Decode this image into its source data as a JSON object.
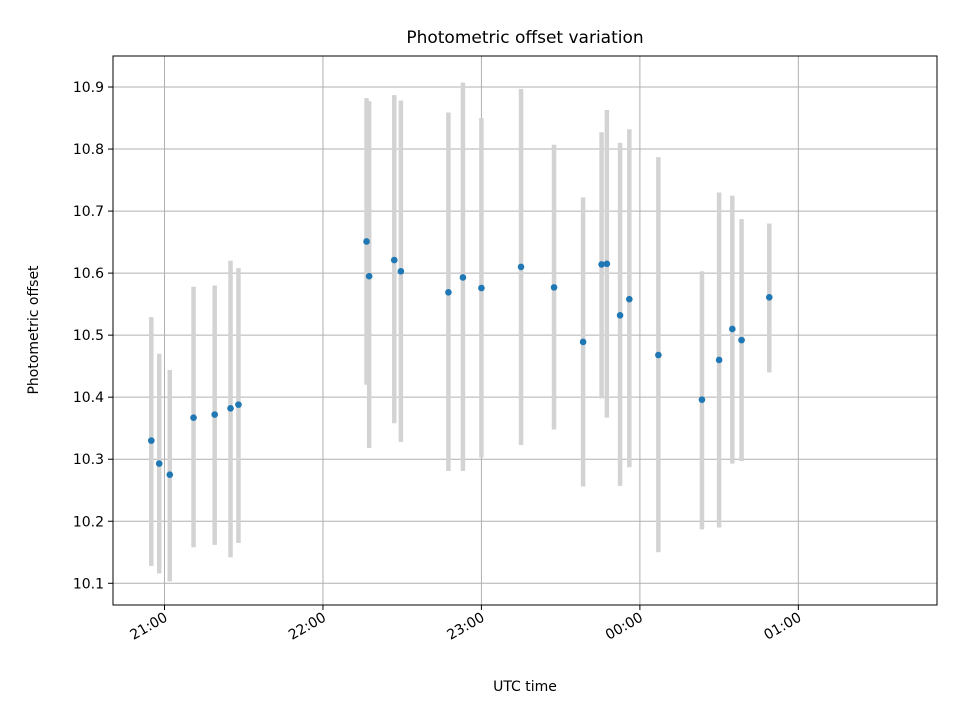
{
  "chart_data": {
    "type": "scatter",
    "title": "Photometric offset variation",
    "xlabel": "UTC time",
    "ylabel": "Photometric offset",
    "x_ticks": [
      "21:00",
      "22:00",
      "23:00",
      "00:00",
      "01:00"
    ],
    "y_ticks": [
      10.1,
      10.2,
      10.3,
      10.4,
      10.5,
      10.6,
      10.7,
      10.8,
      10.9
    ],
    "x_unit": "minutes after 20:00 UTC",
    "xlim": [
      40.5,
      352.5
    ],
    "ylim": [
      10.065,
      10.95
    ],
    "grid": true,
    "legend": "none",
    "colors": {
      "points": "#1f77b4",
      "errorbars": "#d3d3d3"
    },
    "series": [
      {
        "x": [
          55,
          58,
          62,
          71,
          79,
          85,
          88,
          136.5,
          137.5,
          147,
          149.5,
          167.5,
          173,
          180,
          195,
          207.5,
          218.5,
          225.5,
          227.5,
          232.5,
          236,
          247,
          263.5,
          270,
          275,
          278.5,
          289
        ],
        "y": [
          10.33,
          10.293,
          10.275,
          10.367,
          10.372,
          10.382,
          10.388,
          10.651,
          10.595,
          10.621,
          10.603,
          10.569,
          10.593,
          10.576,
          10.61,
          10.577,
          10.489,
          10.614,
          10.615,
          10.532,
          10.558,
          10.468,
          10.396,
          10.46,
          10.51,
          10.492,
          10.561
        ],
        "yerr_low": [
          10.128,
          10.116,
          10.103,
          10.158,
          10.162,
          10.142,
          10.165,
          10.42,
          10.318,
          10.358,
          10.328,
          10.281,
          10.281,
          10.303,
          10.323,
          10.348,
          10.256,
          10.398,
          10.367,
          10.257,
          10.287,
          10.15,
          10.187,
          10.19,
          10.293,
          10.297,
          10.44
        ],
        "yerr_high": [
          10.529,
          10.47,
          10.444,
          10.578,
          10.58,
          10.62,
          10.608,
          10.882,
          10.877,
          10.887,
          10.878,
          10.859,
          10.907,
          10.85,
          10.897,
          10.807,
          10.722,
          10.827,
          10.863,
          10.81,
          10.832,
          10.787,
          10.603,
          10.73,
          10.725,
          10.687,
          10.68
        ]
      }
    ]
  }
}
